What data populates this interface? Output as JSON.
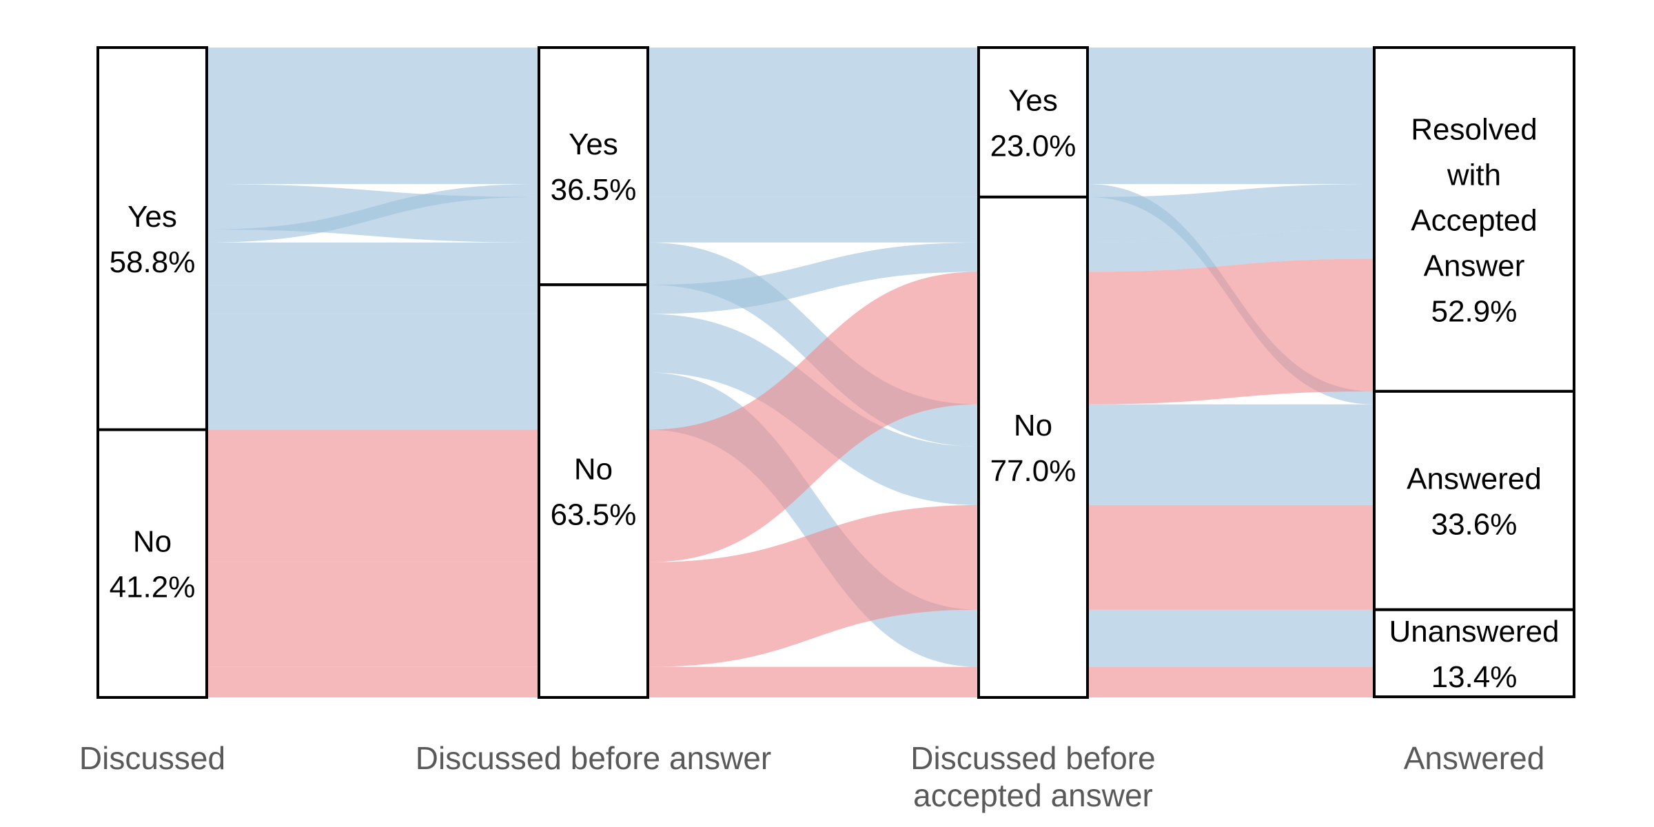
{
  "chart_data": {
    "type": "alluvial",
    "title": "",
    "colors": {
      "Yes": "#9dbfdb",
      "No": "#f08b8d"
    },
    "axes": [
      {
        "label_lines": [
          "Discussed"
        ],
        "strata": [
          {
            "name": "Yes",
            "lines": [
              "Yes",
              "58.8%"
            ],
            "value": 58.8
          },
          {
            "name": "No",
            "lines": [
              "No",
              "41.2%"
            ],
            "value": 41.2
          }
        ]
      },
      {
        "label_lines": [
          "Discussed before answer"
        ],
        "strata": [
          {
            "name": "Yes",
            "lines": [
              "Yes",
              "36.5%"
            ],
            "value": 36.5
          },
          {
            "name": "No",
            "lines": [
              "No",
              "63.5%"
            ],
            "value": 63.5
          }
        ]
      },
      {
        "label_lines": [
          "Discussed before",
          "accepted answer"
        ],
        "strata": [
          {
            "name": "Yes",
            "lines": [
              "Yes",
              "23.0%"
            ],
            "value": 23.0
          },
          {
            "name": "No",
            "lines": [
              "No",
              "77.0%"
            ],
            "value": 77.0
          }
        ]
      },
      {
        "label_lines": [
          "Answered"
        ],
        "strata": [
          {
            "name": "Resolved with Accepted Answer",
            "lines": [
              "Resolved",
              "with",
              "Accepted",
              "Answer",
              "52.9%"
            ],
            "value": 52.9
          },
          {
            "name": "Answered",
            "lines": [
              "Answered",
              "33.6%"
            ],
            "value": 33.6
          },
          {
            "name": "Unanswered",
            "lines": [
              "Unanswered",
              "13.4%"
            ],
            "value": 13.4
          }
        ]
      }
    ],
    "flows": [
      {
        "discussed": "Yes",
        "before_answer": "Yes",
        "before_accepted": "Yes",
        "answered": "Resolved with Accepted Answer",
        "value": 21.0
      },
      {
        "discussed": "Yes",
        "before_answer": "Yes",
        "before_accepted": "No",
        "answered": "Resolved with Accepted Answer",
        "value": 7.0
      },
      {
        "discussed": "Yes",
        "before_answer": "Yes",
        "before_accepted": "Yes",
        "answered": "Answered",
        "value": 2.0
      },
      {
        "discussed": "Yes",
        "before_answer": "Yes",
        "before_accepted": "No",
        "answered": "Answered",
        "value": 6.5
      },
      {
        "discussed": "Yes",
        "before_answer": "No",
        "before_accepted": "No",
        "answered": "Resolved with Accepted Answer",
        "value": 4.5
      },
      {
        "discussed": "Yes",
        "before_answer": "No",
        "before_accepted": "No",
        "answered": "Answered",
        "value": 9.0
      },
      {
        "discussed": "Yes",
        "before_answer": "No",
        "before_accepted": "No",
        "answered": "Unanswered",
        "value": 8.8
      },
      {
        "discussed": "No",
        "before_answer": "No",
        "before_accepted": "No",
        "answered": "Resolved with Accepted Answer",
        "value": 20.4
      },
      {
        "discussed": "No",
        "before_answer": "No",
        "before_accepted": "No",
        "answered": "Answered",
        "value": 16.1
      },
      {
        "discussed": "No",
        "before_answer": "No",
        "before_accepted": "No",
        "answered": "Unanswered",
        "value": 4.7
      }
    ]
  }
}
